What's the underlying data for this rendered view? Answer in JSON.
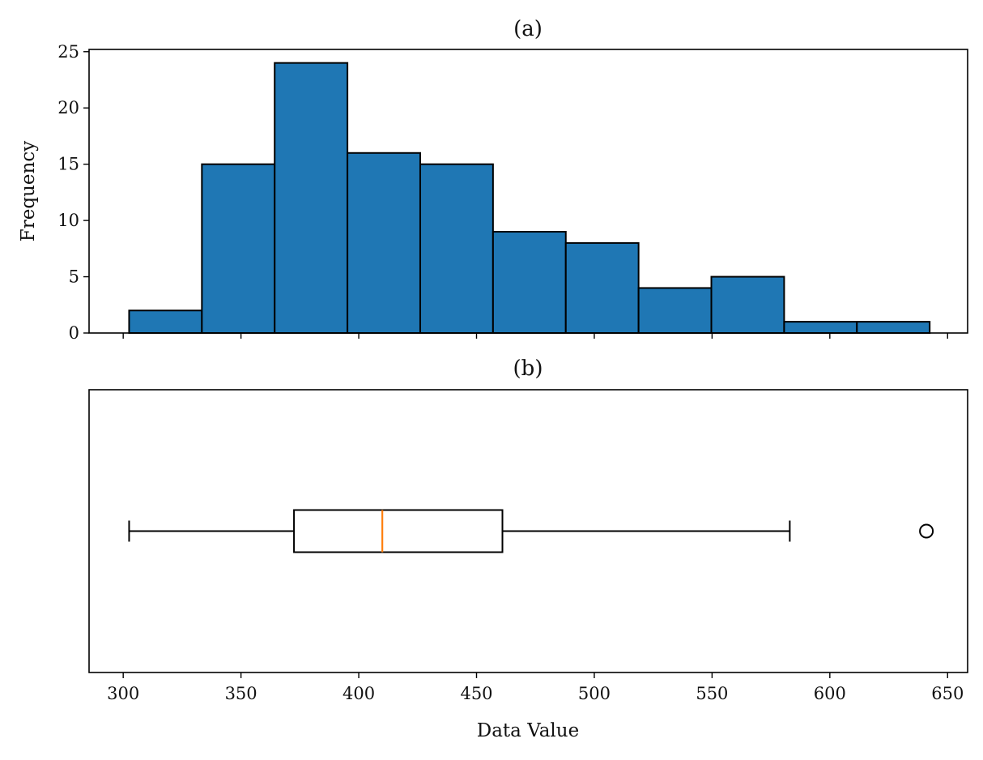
{
  "chart_data": [
    {
      "type": "histogram",
      "title": "(a)",
      "xlabel": "",
      "ylabel": "Frequency",
      "bin_edges": [
        302.5,
        333.4,
        364.3,
        395.2,
        426.1,
        457.0,
        487.9,
        518.8,
        549.7,
        580.6,
        611.5,
        642.4
      ],
      "counts": [
        2,
        15,
        24,
        16,
        15,
        9,
        8,
        4,
        5,
        1,
        1
      ],
      "ylim": [
        0,
        25.2
      ],
      "yticks": [
        0,
        5,
        10,
        15,
        20,
        25
      ],
      "xlim": [
        285.5,
        658.5
      ],
      "xticks": [
        300,
        350,
        400,
        450,
        500,
        550,
        600,
        650
      ],
      "show_x_tick_labels": false,
      "bar_color": "#1f77b4",
      "edge_color": "#000000",
      "grid": false
    },
    {
      "type": "boxplot",
      "orientation": "horizontal",
      "title": "(b)",
      "xlabel": "Data Value",
      "ylabel": "",
      "whisker_low": 302.5,
      "q1": 372.5,
      "median": 410,
      "q3": 461,
      "whisker_high": 583,
      "outliers": [
        641
      ],
      "xlim": [
        285.5,
        658.5
      ],
      "xticks": [
        300,
        350,
        400,
        450,
        500,
        550,
        600,
        650
      ],
      "show_y_ticks": false,
      "box_color": "#000000",
      "median_color": "#ff7f0e",
      "grid": false
    }
  ]
}
